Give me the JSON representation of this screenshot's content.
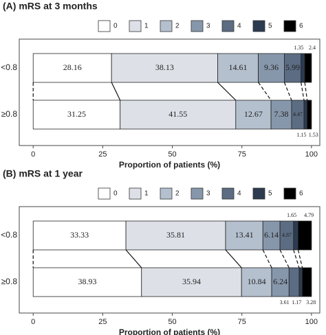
{
  "chart_data": [
    {
      "type": "bar",
      "title": "(A) mRS at 3 months",
      "xlabel": "Proportion of patients (%)",
      "categories": [
        "<0.8",
        "≥0.8"
      ],
      "series": [
        {
          "name": "0",
          "color": "#ffffff",
          "values": [
            28.16,
            31.25
          ]
        },
        {
          "name": "1",
          "color": "#dde1e7",
          "values": [
            38.13,
            41.55
          ]
        },
        {
          "name": "2",
          "color": "#b4c0ce",
          "values": [
            14.61,
            12.67
          ]
        },
        {
          "name": "3",
          "color": "#8797ab",
          "values": [
            9.36,
            7.38
          ]
        },
        {
          "name": "4",
          "color": "#5b6c83",
          "values": [
            5.99,
            4.47
          ]
        },
        {
          "name": "5",
          "color": "#2c3b50",
          "values": [
            1.35,
            1.15
          ]
        },
        {
          "name": "6",
          "color": "#000000",
          "values": [
            2.4,
            1.53
          ]
        }
      ],
      "xlim": [
        -5,
        103
      ],
      "xticks": [
        0,
        25,
        50,
        75,
        100
      ]
    },
    {
      "type": "bar",
      "title": "(B) mRS at 1 year",
      "xlabel": "Proportion of patients (%)",
      "categories": [
        "<0.8",
        "≥0.8"
      ],
      "series": [
        {
          "name": "0",
          "color": "#ffffff",
          "values": [
            33.33,
            38.93
          ]
        },
        {
          "name": "1",
          "color": "#dde1e7",
          "values": [
            35.81,
            35.94
          ]
        },
        {
          "name": "2",
          "color": "#b4c0ce",
          "values": [
            13.41,
            10.84
          ]
        },
        {
          "name": "3",
          "color": "#8797ab",
          "values": [
            6.14,
            6.24
          ]
        },
        {
          "name": "4",
          "color": "#5b6c83",
          "values": [
            4.87,
            3.61
          ]
        },
        {
          "name": "5",
          "color": "#2c3b50",
          "values": [
            1.65,
            1.17
          ]
        },
        {
          "name": "6",
          "color": "#000000",
          "values": [
            4.79,
            3.28
          ]
        }
      ],
      "xlim": [
        -5,
        103
      ],
      "xticks": [
        0,
        25,
        50,
        75,
        100
      ]
    }
  ]
}
